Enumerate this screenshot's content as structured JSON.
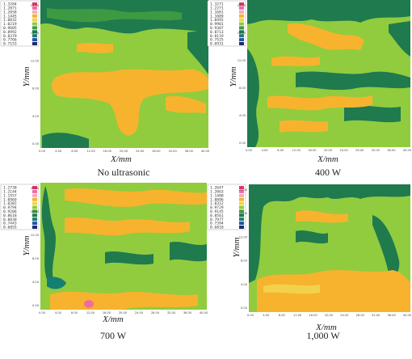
{
  "chart_data": [
    {
      "type": "heatmap",
      "caption": "No ultrasonic",
      "xlabel": "X/mm",
      "ylabel": "Y/mm",
      "x_ticks": [
        "0.00",
        "4.00",
        "8.00",
        "12.00",
        "16.00",
        "20.00",
        "24.00",
        "28.00",
        "32.00",
        "36.00",
        "40.00"
      ],
      "y_ticks": [
        "20.00",
        "16.00",
        "12.00",
        "8.00",
        "4.00",
        "0.00"
      ],
      "legend": [
        "1.3284",
        "1.2871",
        "1.2058",
        "1.1445",
        "1.0832",
        "1.0219",
        "0.9605",
        "0.8992",
        "0.8379",
        "0.7766",
        "0.7153"
      ],
      "colors": [
        "#e8326c",
        "#f06ca0",
        "#f4a8c4",
        "#f7b32d",
        "#f2d24a",
        "#90cc3e",
        "#3d9a43",
        "#1f7a4d",
        "#157f72",
        "#2c4fa8",
        "#1c2d6e"
      ]
    },
    {
      "type": "heatmap",
      "caption": "400 W",
      "xlabel": "X/mm",
      "ylabel": "Y/mm",
      "x_ticks": [
        "0.00",
        "4.00",
        "8.00",
        "12.00",
        "16.00",
        "20.00",
        "24.00",
        "28.00",
        "32.00",
        "36.00",
        "40.00"
      ],
      "y_ticks": [
        "20.00",
        "16.00",
        "12.00",
        "8.00",
        "4.00",
        "0.00"
      ],
      "legend": [
        "1.3271",
        "1.2271",
        "1.1681",
        "1.1089",
        "1.0492",
        "0.9901",
        "0.9307",
        "0.8713",
        "0.8119",
        "0.7525",
        "0.6931"
      ],
      "colors": [
        "#e8326c",
        "#f06ca0",
        "#f4a8c4",
        "#f7b32d",
        "#f2d24a",
        "#90cc3e",
        "#3d9a43",
        "#1f7a4d",
        "#157f72",
        "#2c4fa8",
        "#1c2d6e"
      ]
    },
    {
      "type": "heatmap",
      "caption": "700 W",
      "xlabel": "X/mm",
      "ylabel": "Y/mm",
      "x_ticks": [
        "0.00",
        "4.00",
        "8.00",
        "12.00",
        "16.00",
        "20.00",
        "24.00",
        "28.00",
        "32.00",
        "36.00",
        "40.00"
      ],
      "y_ticks": [
        "20.00",
        "16.00",
        "12.00",
        "8.00",
        "4.00",
        "0.00"
      ],
      "legend": [
        "1.2730",
        "1.2144",
        "1.1557",
        "1.0969",
        "1.0382",
        "0.9794",
        "0.9206",
        "0.8618",
        "0.8030",
        "0.7443",
        "0.6855"
      ],
      "colors": [
        "#e8326c",
        "#f06ca0",
        "#f4a8c4",
        "#f7b32d",
        "#f2d24a",
        "#90cc3e",
        "#3d9a43",
        "#1f7a4d",
        "#157f72",
        "#2c4fa8",
        "#1c2d6e"
      ]
    },
    {
      "type": "heatmap",
      "caption": "1,000 W",
      "xlabel": "X/mm",
      "ylabel": "Y/mm",
      "x_ticks": [
        "0.00",
        "4.00",
        "8.00",
        "12.00",
        "16.00",
        "20.00",
        "24.00",
        "28.00",
        "32.00",
        "36.00",
        "40.00"
      ],
      "y_ticks": [
        "20.00",
        "16.00",
        "12.00",
        "8.00",
        "4.00",
        "0.00"
      ],
      "legend": [
        "1.2647",
        "1.2063",
        "1.1480",
        "1.0896",
        "1.0312",
        "0.9729",
        "0.9145",
        "0.8561",
        "0.7977",
        "0.7394",
        "0.6810"
      ],
      "colors": [
        "#e8326c",
        "#f06ca0",
        "#f4a8c4",
        "#f7b32d",
        "#f2d24a",
        "#90cc3e",
        "#3d9a43",
        "#1f7a4d",
        "#157f72",
        "#2c4fa8",
        "#1c2d6e"
      ]
    }
  ]
}
